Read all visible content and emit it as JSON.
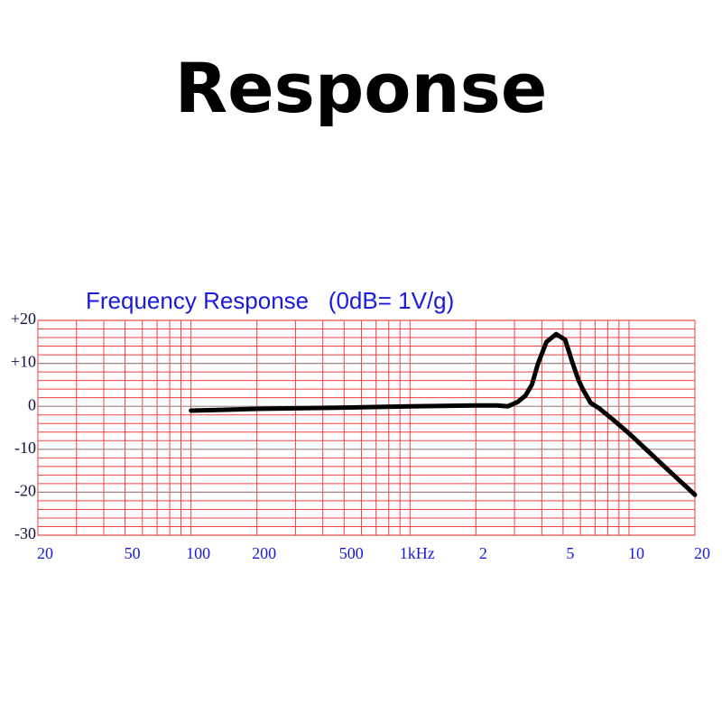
{
  "header": {
    "title": "Response"
  },
  "chart_data": {
    "type": "line",
    "title": "Frequency Response   (0dB= 1V/g)",
    "x_log": true,
    "xlim": [
      20,
      20000
    ],
    "xticks": [
      20,
      50,
      100,
      200,
      500,
      {
        "value": 1000,
        "label": "1kHz"
      },
      {
        "value": 2000,
        "label": "2"
      },
      {
        "value": 5000,
        "label": "5"
      },
      {
        "value": 10000,
        "label": "10"
      },
      {
        "value": 20000,
        "label": "20"
      }
    ],
    "xminorticks": [
      30,
      40,
      60,
      70,
      80,
      90,
      300,
      400,
      600,
      700,
      800,
      900,
      3000,
      4000,
      6000,
      7000,
      8000,
      9000
    ],
    "ylim": [
      -30,
      20
    ],
    "yticks": [
      {
        "value": 20,
        "label": "+20"
      },
      {
        "value": 10,
        "label": "+10"
      },
      0,
      -10,
      -20,
      -30
    ],
    "yminorticks": [
      18,
      16,
      14,
      12,
      8,
      6,
      4,
      2,
      -2,
      -4,
      -6,
      -8,
      -12,
      -14,
      -16,
      -18,
      -22,
      -24,
      -26,
      -28
    ],
    "grid": true,
    "grid_color": "#f04040",
    "major_grid_color": "#a08080",
    "series": [
      {
        "name": "response",
        "color": "#000000",
        "x": [
          100,
          200,
          500,
          1000,
          2000,
          2500,
          2800,
          3100,
          3370,
          3600,
          3845,
          4200,
          4650,
          5110,
          5530,
          5890,
          6180,
          6680,
          7320,
          8400,
          10000,
          15000,
          20000
        ],
        "values": [
          -1,
          -0.6,
          -0.3,
          0,
          0.2,
          0.2,
          0,
          1,
          2.5,
          5,
          10,
          15,
          16.8,
          15.5,
          10,
          6,
          3.8,
          0.8,
          -0.5,
          -3,
          -6.3,
          -14.7,
          -20.6
        ]
      }
    ]
  }
}
